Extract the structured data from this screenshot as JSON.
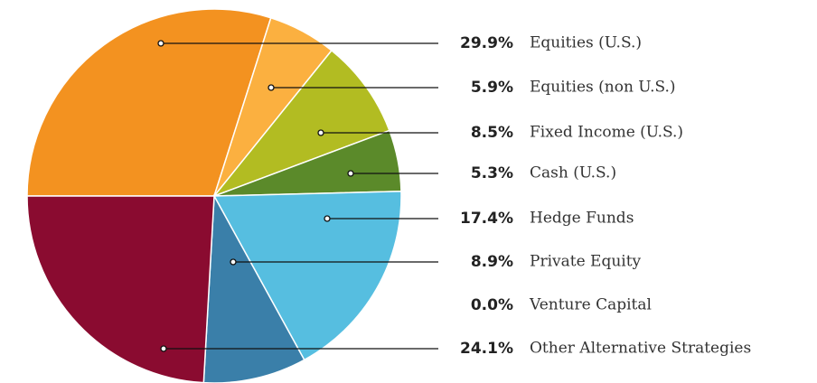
{
  "chart_data": {
    "type": "pie",
    "categories": [
      "Equities (U.S.)",
      "Equities (non U.S.)",
      "Fixed Income (U.S.)",
      "Cash (U.S.)",
      "Hedge Funds",
      "Private Equity",
      "Venture Capital",
      "Other Alternative Strategies"
    ],
    "values": [
      29.9,
      5.9,
      8.5,
      5.3,
      17.4,
      8.9,
      0.0,
      24.1
    ],
    "value_labels": [
      "29.9%",
      "5.9%",
      "8.5%",
      "5.3%",
      "17.4%",
      "8.9%",
      "0.0%",
      "24.1%"
    ],
    "colors": [
      "#f39220",
      "#fbb040",
      "#b2bc22",
      "#5b8a2a",
      "#56bee0",
      "#3a7fa9",
      "#1f4e79",
      "#8a0b30"
    ]
  }
}
